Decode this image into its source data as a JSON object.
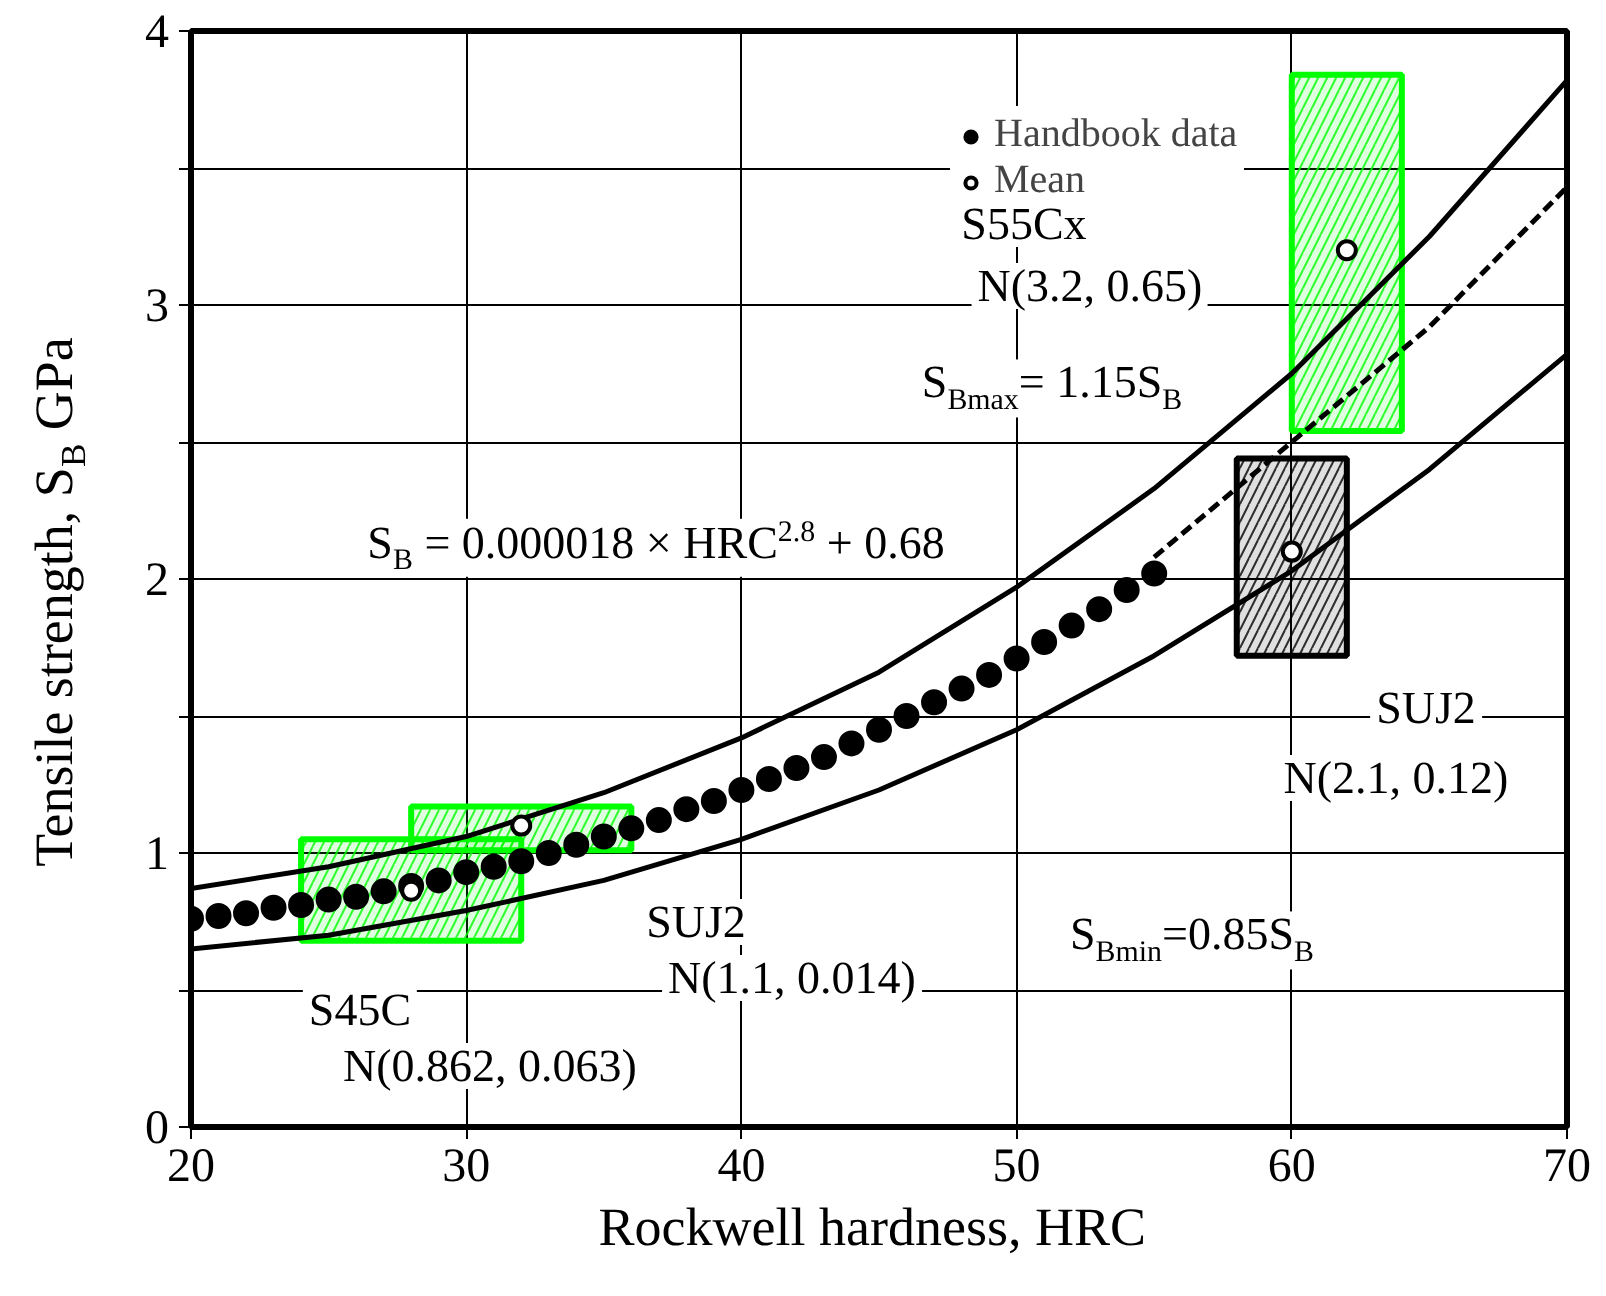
{
  "chart_data": {
    "type": "line",
    "xlabel": "Rockwell hardness,  HRC",
    "ylabel": "Tensile strength, S$_{B}$  GPa",
    "xlim": [
      20,
      70
    ],
    "xticks": [
      20,
      30,
      40,
      50,
      60,
      70
    ],
    "ylim": [
      0,
      4
    ],
    "yticks": [
      0,
      {
        "value": 0.5,
        "label": null
      },
      1,
      {
        "value": 1.5,
        "label": null
      },
      2,
      {
        "value": 2.5,
        "label": null
      },
      3,
      {
        "value": 3.5,
        "label": null
      },
      4
    ],
    "grid": true,
    "legend": "top",
    "series": [
      {
        "color": "#000000",
        "line_style": "solid",
        "x": [
          20,
          25,
          30,
          35,
          40,
          45,
          50,
          55,
          60,
          65,
          70
        ],
        "values": [
          0.87,
          0.95,
          1.06,
          1.22,
          1.42,
          1.66,
          1.97,
          2.33,
          2.75,
          3.25,
          3.82
        ]
      },
      {
        "color": "#000000",
        "line_style": "solid",
        "x": [
          20,
          25,
          30,
          35,
          40,
          45,
          50,
          55,
          60,
          65,
          70
        ],
        "values": [
          0.65,
          0.7,
          0.79,
          0.9,
          1.05,
          1.23,
          1.45,
          1.72,
          2.03,
          2.4,
          2.82
        ]
      },
      {
        "color": "#000000",
        "line_style": "dashed",
        "x": [
          55,
          60,
          65,
          70
        ],
        "values": [
          2.08,
          2.5,
          2.92,
          3.43
        ]
      },
      {
        "type": "bar",
        "color": "#00ff00",
        "x": [
          28
        ],
        "base": [
          0.68
        ],
        "values": [
          0.37
        ]
      },
      {
        "type": "bar",
        "color": "#00ff00",
        "x": [
          32
        ],
        "base": [
          1.01
        ],
        "values": [
          0.16
        ]
      },
      {
        "type": "bar",
        "color": "#00ff00",
        "x": [
          62
        ],
        "base": [
          2.54
        ],
        "values": [
          1.3
        ]
      },
      {
        "type": "bar",
        "color": "#000000",
        "x": [
          60
        ],
        "base": [
          1.72
        ],
        "values": [
          0.72
        ]
      },
      {
        "type": "scatter",
        "name": "Handbook data",
        "color": "#000000",
        "marker": "circle",
        "x": [
          20,
          21,
          22,
          23,
          24,
          25,
          26,
          27,
          28,
          29,
          30,
          31,
          32,
          33,
          34,
          35,
          36,
          37,
          38,
          39,
          40,
          41,
          42,
          43,
          44,
          45,
          46,
          47,
          48,
          49,
          50,
          51,
          52,
          53,
          54,
          55
        ],
        "values": [
          0.76,
          0.77,
          0.78,
          0.8,
          0.81,
          0.83,
          0.84,
          0.86,
          0.88,
          0.9,
          0.93,
          0.95,
          0.97,
          1.0,
          1.03,
          1.06,
          1.09,
          1.12,
          1.16,
          1.19,
          1.23,
          1.27,
          1.31,
          1.35,
          1.4,
          1.45,
          1.5,
          1.55,
          1.6,
          1.65,
          1.71,
          1.77,
          1.83,
          1.89,
          1.96,
          2.02
        ]
      },
      {
        "type": "scatter",
        "name": "Mean",
        "color": "#000000",
        "marker": "circle",
        "x": [
          28,
          32,
          62,
          60
        ],
        "values": [
          0.862,
          1.1,
          3.2,
          2.1
        ]
      }
    ],
    "annotations": [
      "S45C",
      "N(0.862, 0.063)",
      "SUJ2",
      "N(1.1, 0.014)",
      "S55Cx",
      "N(3.2, 0.65)",
      "S$_{Bmax}$= 1.15S$_{B}$",
      "S$_{B}$ = 0.000018 × HRC$^{2.8}$ + 0.68",
      "SUJ2",
      "N(2.1, 0.12)",
      "S$_{Bmin}$=0.85S$_{B}$"
    ]
  }
}
